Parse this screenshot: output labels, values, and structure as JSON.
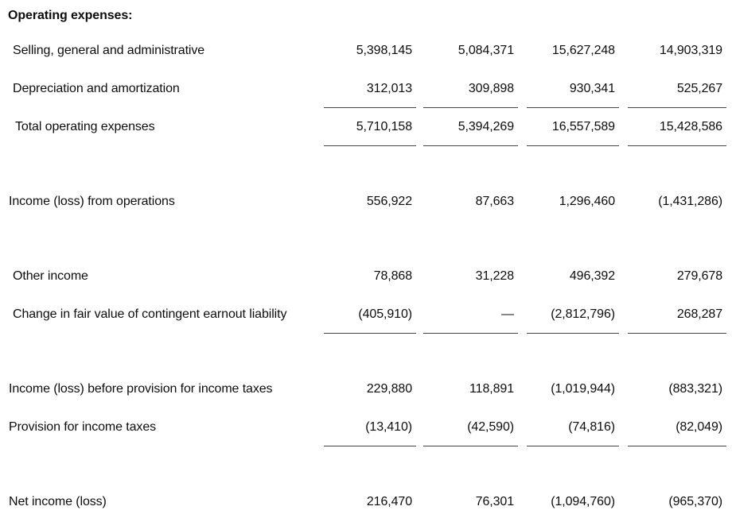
{
  "colors": {
    "background": "#ffffff",
    "text": "#0d0d0d",
    "rule": "#444444"
  },
  "table": {
    "section_header": "Operating expenses:",
    "rows": [
      {
        "label": "Selling, general and administrative",
        "values": [
          "5,398,145",
          "5,084,371",
          "15,627,248",
          "14,903,319"
        ]
      },
      {
        "label": "Depreciation and amortization",
        "values": [
          "312,013",
          "309,898",
          "930,341",
          "525,267"
        ]
      },
      {
        "label": "Total operating expenses",
        "values": [
          "5,710,158",
          "5,394,269",
          "16,557,589",
          "15,428,586"
        ]
      },
      {
        "label": "Income (loss) from operations",
        "values": [
          "556,922",
          "87,663",
          "1,296,460",
          "(1,431,286)"
        ]
      },
      {
        "label": "Other income",
        "values": [
          "78,868",
          "31,228",
          "496,392",
          "279,678"
        ]
      },
      {
        "label": "Change in fair value of contingent earnout liability",
        "values": [
          "(405,910)",
          "—",
          "(2,812,796)",
          "268,287"
        ]
      },
      {
        "label": "Income (loss) before provision for income taxes",
        "values": [
          "229,880",
          "118,891",
          "(1,019,944)",
          "(883,321)"
        ]
      },
      {
        "label": "Provision for income taxes",
        "values": [
          "(13,410)",
          "(42,590)",
          "(74,816)",
          "(82,049)"
        ]
      },
      {
        "label": "Net income (loss)",
        "values": [
          "216,470",
          "76,301",
          "(1,094,760)",
          "(965,370)"
        ]
      }
    ]
  }
}
